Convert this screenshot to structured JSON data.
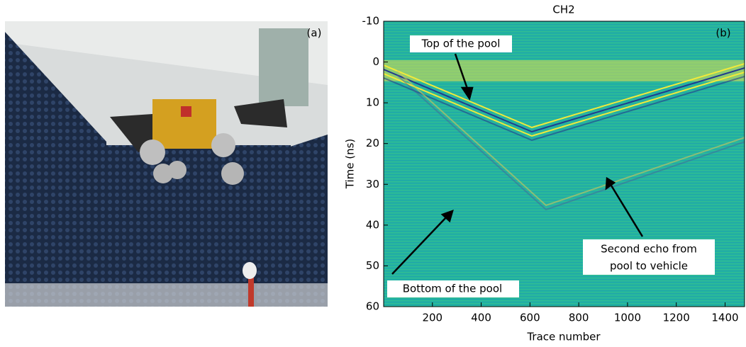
{
  "chart_data": {
    "type": "radargram",
    "title": "CH2",
    "xlabel": "Trace number",
    "ylabel": "Time (ns)",
    "xlim": [
      0,
      1480
    ],
    "ylim": [
      -10,
      60
    ],
    "y_inverted": true,
    "xticks": [
      200,
      400,
      600,
      800,
      1000,
      1200,
      1400
    ],
    "yticks": [
      -10,
      0,
      10,
      20,
      30,
      40,
      50,
      60
    ],
    "panel_labels": [
      "(a)",
      "(b)"
    ],
    "annotations": [
      {
        "lines": [
          "Top of the pool"
        ]
      },
      {
        "lines": [
          "Second echo from",
          "pool to vehicle"
        ]
      },
      {
        "lines": [
          "Bottom of the pool"
        ]
      }
    ]
  }
}
